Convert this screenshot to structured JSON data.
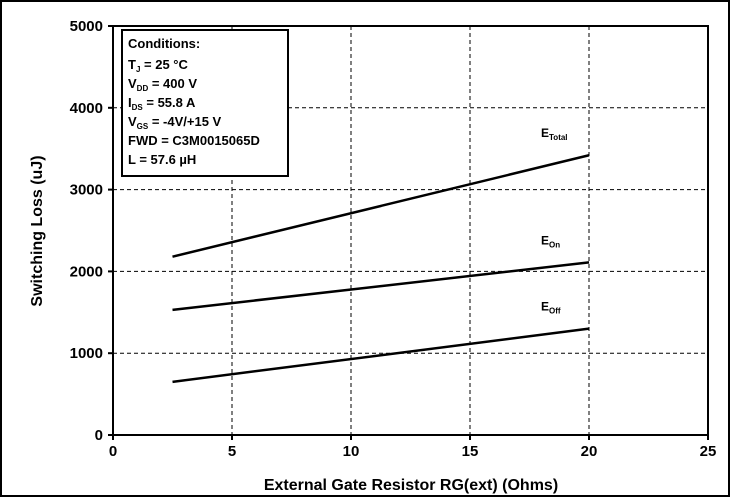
{
  "chart_data": {
    "type": "line",
    "title": "",
    "xlabel": "External Gate Resistor RG(ext) (Ohms)",
    "ylabel": "Switching Loss (uJ)",
    "xlim": [
      0,
      25
    ],
    "ylim": [
      0,
      5000
    ],
    "x_ticks": [
      0,
      5,
      10,
      15,
      20,
      25
    ],
    "y_ticks": [
      0,
      1000,
      2000,
      3000,
      4000,
      5000
    ],
    "grid": "dashed major gridlines",
    "series": [
      {
        "name": "E_Total",
        "label_main": "E",
        "label_sub": "Total",
        "x": [
          2.5,
          20
        ],
        "y": [
          2180,
          3420
        ]
      },
      {
        "name": "E_On",
        "label_main": "E",
        "label_sub": "On",
        "x": [
          2.5,
          20
        ],
        "y": [
          1530,
          2110
        ]
      },
      {
        "name": "E_Off",
        "label_main": "E",
        "label_sub": "Off",
        "x": [
          2.5,
          20
        ],
        "y": [
          650,
          1300
        ]
      }
    ],
    "conditions": {
      "heading": "Conditions:",
      "lines": [
        {
          "main": "T",
          "sub": "J",
          "rest": " = 25 °C"
        },
        {
          "main": "V",
          "sub": "DD",
          "rest": " = 400 V"
        },
        {
          "main": "I",
          "sub": "DS",
          "rest": " = 55.8 A"
        },
        {
          "main": "V",
          "sub": "GS",
          "rest": " = -4V/+15 V"
        },
        {
          "main": "FWD = C3M0015065D",
          "sub": "",
          "rest": ""
        },
        {
          "main": "L = 57.6 µH",
          "sub": "",
          "rest": ""
        }
      ]
    }
  }
}
